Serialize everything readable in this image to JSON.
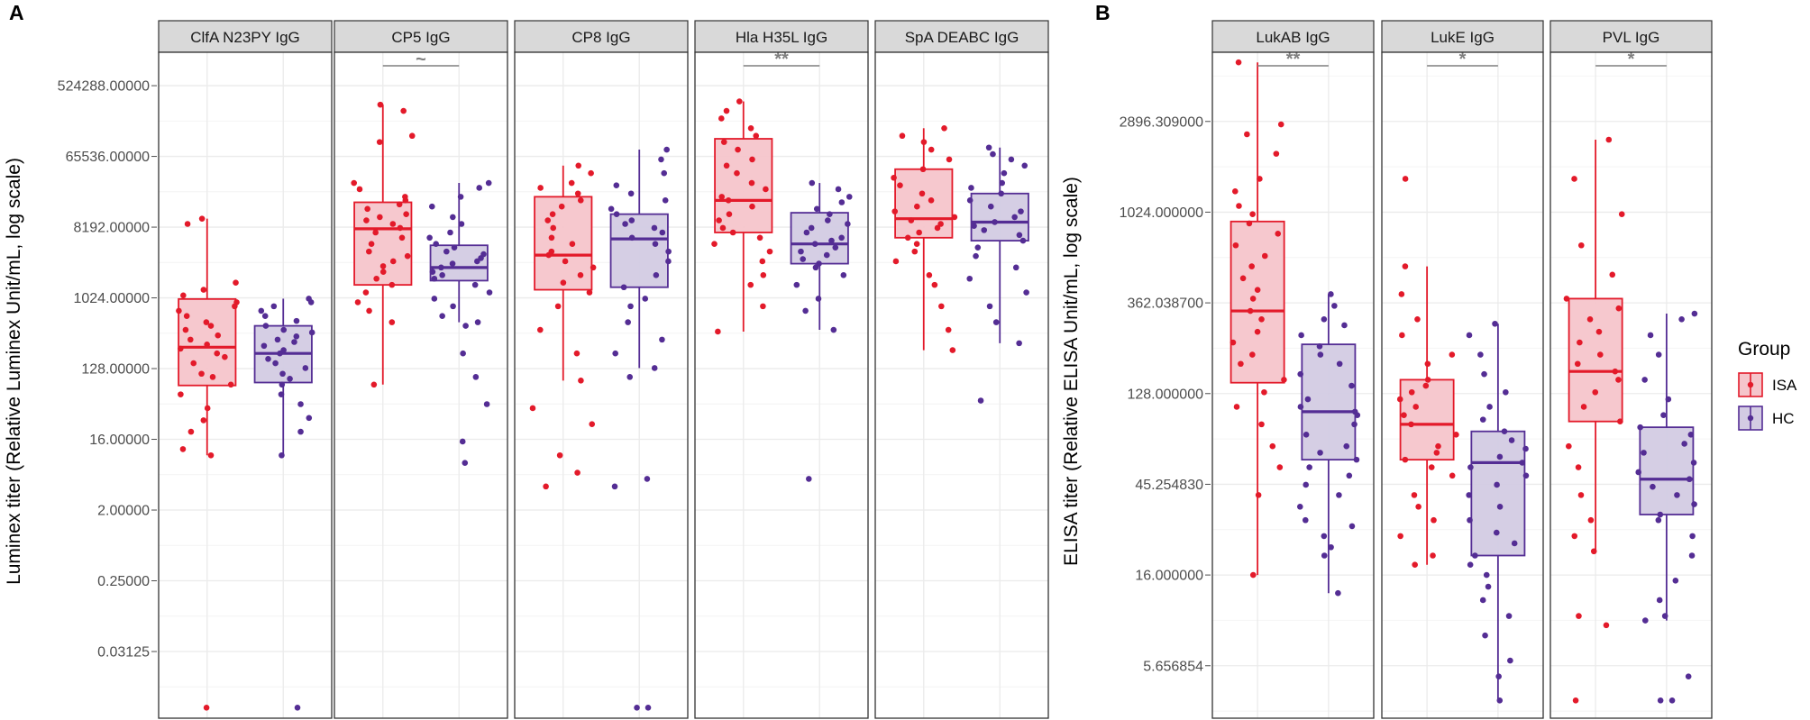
{
  "panel_labels": {
    "a": "A",
    "b": "B"
  },
  "groups": [
    {
      "key": "ISA",
      "label": "ISA",
      "color": "#e31a2a"
    },
    {
      "key": "HC",
      "label": "HC",
      "color": "#542d94"
    }
  ],
  "legend": {
    "title": "Group",
    "items": [
      "ISA",
      "HC"
    ]
  },
  "chart_data": [
    {
      "type": "box",
      "panel": "A",
      "ylabel": "Luminex titer (Relative Luminex Unit/mL, log scale)",
      "y_scale": "log2",
      "ylim": [
        0.0044,
        1400000
      ],
      "yticks": [
        524288,
        65536,
        8192,
        1024,
        128,
        16,
        2,
        0.25,
        0.03125
      ],
      "ytick_labels": [
        "524288.00000",
        "65536.00000",
        "8192.00000",
        "1024.00000",
        "128.00000",
        "16.00000",
        "2.00000",
        "0.25000",
        "0.03125"
      ],
      "facets": [
        {
          "label": "ClfA N23PY IgG",
          "sig": "",
          "groups": [
            {
              "group": "ISA",
              "min": 10,
              "q1": 78,
              "median": 240,
              "q3": 990,
              "max": 10500,
              "points": [
                0.006,
                10,
                12,
                20,
                28,
                40,
                60,
                80,
                100,
                110,
                150,
                180,
                200,
                230,
                260,
                300,
                340,
                400,
                450,
                500,
                600,
                700,
                800,
                900,
                1100,
                1300,
                1600,
                9000,
                10500
              ]
            },
            {
              "group": "HC",
              "min": 10,
              "q1": 85,
              "median": 200,
              "q3": 450,
              "max": 1000,
              "points": [
                0.006,
                10,
                20,
                30,
                45,
                60,
                80,
                95,
                110,
                130,
                150,
                170,
                200,
                220,
                250,
                280,
                300,
                330,
                370,
                400,
                450,
                520,
                600,
                700,
                800,
                900,
                1000
              ]
            }
          ]
        },
        {
          "label": "CP5 IgG",
          "sig": "~",
          "groups": [
            {
              "group": "ISA",
              "min": 80,
              "q1": 1500,
              "median": 7800,
              "q3": 17000,
              "max": 300000,
              "points": [
                80,
                500,
                700,
                900,
                1200,
                1500,
                1800,
                2200,
                2600,
                3000,
                3500,
                4000,
                5000,
                6000,
                7000,
                8000,
                9000,
                10000,
                11000,
                12000,
                14000,
                16000,
                18000,
                20000,
                25000,
                30000,
                100000,
                120000,
                250000,
                300000
              ]
            },
            {
              "group": "HC",
              "min": 500,
              "q1": 1700,
              "median": 2500,
              "q3": 4800,
              "max": 30000,
              "points": [
                8,
                15,
                45,
                100,
                200,
                450,
                500,
                600,
                800,
                1000,
                1200,
                1500,
                1800,
                2000,
                2200,
                2500,
                2800,
                3000,
                3300,
                3700,
                4000,
                4500,
                5000,
                6000,
                7000,
                9000,
                11000,
                15000,
                20000,
                26000,
                30000
              ]
            }
          ]
        },
        {
          "label": "CP8 IgG",
          "sig": "",
          "groups": [
            {
              "group": "ISA",
              "min": 90,
              "q1": 1300,
              "median": 3600,
              "q3": 20000,
              "max": 50000,
              "points": [
                4,
                6,
                10,
                25,
                40,
                90,
                200,
                400,
                800,
                1200,
                1600,
                2000,
                2500,
                3000,
                3600,
                4000,
                5000,
                6000,
                8000,
                10000,
                12000,
                15000,
                18000,
                22000,
                26000,
                30000,
                40000,
                50000
              ]
            },
            {
              "group": "HC",
              "min": 130,
              "q1": 1400,
              "median": 5800,
              "q3": 12000,
              "max": 80000,
              "points": [
                0.006,
                0.006,
                4,
                5,
                100,
                130,
                200,
                300,
                500,
                800,
                1000,
                1400,
                2000,
                3000,
                4000,
                5000,
                6000,
                7000,
                8000,
                9000,
                10000,
                12000,
                14000,
                18000,
                22000,
                28000,
                40000,
                60000,
                80000
              ]
            }
          ]
        },
        {
          "label": "Hla H35L IgG",
          "sig": "**",
          "groups": [
            {
              "group": "ISA",
              "min": 380,
              "q1": 7000,
              "median": 18000,
              "q3": 110000,
              "max": 330000,
              "points": [
                380,
                800,
                1500,
                2000,
                3000,
                4000,
                5000,
                6000,
                7000,
                8000,
                10000,
                12000,
                15000,
                18000,
                20000,
                25000,
                30000,
                40000,
                50000,
                60000,
                80000,
                100000,
                120000,
                150000,
                200000,
                250000,
                330000
              ]
            },
            {
              "group": "HC",
              "min": 400,
              "q1": 2800,
              "median": 5000,
              "q3": 12500,
              "max": 30000,
              "points": [
                5,
                400,
                700,
                1000,
                1500,
                2000,
                2500,
                2800,
                3200,
                3600,
                4000,
                4500,
                5000,
                5500,
                6000,
                7000,
                8000,
                9000,
                10000,
                12000,
                14000,
                17000,
                20000,
                25000,
                30000
              ]
            }
          ]
        },
        {
          "label": "SpA DEABC IgG",
          "sig": "",
          "groups": [
            {
              "group": "ISA",
              "min": 220,
              "q1": 6000,
              "median": 10500,
              "q3": 45000,
              "max": 150000,
              "points": [
                220,
                400,
                800,
                1500,
                2000,
                3000,
                4000,
                5000,
                6000,
                7000,
                8000,
                9000,
                10000,
                11000,
                13000,
                15000,
                18000,
                22000,
                28000,
                35000,
                45000,
                60000,
                80000,
                100000,
                120000,
                150000
              ]
            },
            {
              "group": "HC",
              "min": 270,
              "q1": 5500,
              "median": 9500,
              "q3": 22000,
              "max": 85000,
              "points": [
                50,
                270,
                500,
                800,
                1200,
                1800,
                2500,
                3500,
                4500,
                5500,
                6500,
                7500,
                8500,
                9500,
                11000,
                13000,
                15000,
                18000,
                22000,
                26000,
                30000,
                40000,
                50000,
                60000,
                70000,
                85000
              ]
            }
          ]
        }
      ]
    },
    {
      "type": "box",
      "panel": "B",
      "ylabel": "ELISA titer (Relative ELISA Unit/mL, log scale)",
      "y_scale": "log2",
      "ylim": [
        3.1,
        6400
      ],
      "yticks": [
        2896.309,
        1024,
        362.0387,
        128,
        45.25483,
        16,
        5.656854
      ],
      "ytick_labels": [
        "2896.309000",
        "1024.000000",
        "362.038700",
        "128.000000",
        "45.254830",
        "16.000000",
        "5.656854"
      ],
      "facets": [
        {
          "label": "LukAB IgG",
          "sig": "**",
          "groups": [
            {
              "group": "ISA",
              "min": 16,
              "q1": 145,
              "median": 330,
              "q3": 920,
              "max": 5700,
              "points": [
                16,
                40,
                55,
                70,
                90,
                110,
                130,
                150,
                180,
                200,
                230,
                260,
                300,
                330,
                380,
                420,
                480,
                550,
                620,
                700,
                800,
                900,
                1000,
                1100,
                1300,
                1500,
                2000,
                2500,
                2800,
                5700
              ]
            },
            {
              "group": "HC",
              "min": 13,
              "q1": 60,
              "median": 104,
              "q3": 225,
              "max": 400,
              "points": [
                13,
                20,
                22,
                25,
                28,
                30,
                35,
                40,
                45,
                50,
                55,
                60,
                65,
                70,
                80,
                90,
                100,
                104,
                110,
                120,
                140,
                160,
                180,
                200,
                220,
                250,
                280,
                300,
                350,
                400
              ]
            }
          ]
        },
        {
          "label": "LukE IgG",
          "sig": "*",
          "groups": [
            {
              "group": "ISA",
              "min": 18,
              "q1": 60,
              "median": 90,
              "q3": 150,
              "max": 550,
              "points": [
                18,
                20,
                25,
                30,
                35,
                40,
                50,
                55,
                60,
                65,
                70,
                80,
                90,
                100,
                110,
                120,
                130,
                140,
                150,
                180,
                200,
                250,
                300,
                400,
                550,
                1500
              ]
            },
            {
              "group": "HC",
              "min": 3.8,
              "q1": 20,
              "median": 58,
              "q3": 83,
              "max": 285,
              "points": [
                3.8,
                5,
                6,
                8,
                10,
                12,
                14,
                16,
                18,
                20,
                23,
                26,
                30,
                35,
                40,
                45,
                50,
                55,
                58,
                62,
                68,
                75,
                83,
                95,
                110,
                130,
                160,
                200,
                250,
                285
              ]
            }
          ]
        },
        {
          "label": "PVL IgG",
          "sig": "*",
          "groups": [
            {
              "group": "ISA",
              "min": 21,
              "q1": 93,
              "median": 165,
              "q3": 380,
              "max": 2350,
              "points": [
                3.8,
                9,
                10,
                21,
                25,
                30,
                40,
                55,
                70,
                93,
                110,
                130,
                150,
                165,
                180,
                200,
                230,
                260,
                300,
                340,
                380,
                500,
                700,
                1000,
                1500,
                2350
              ]
            },
            {
              "group": "HC",
              "min": 9.5,
              "q1": 32,
              "median": 48,
              "q3": 87,
              "max": 320,
              "points": [
                3.8,
                3.8,
                5,
                9.5,
                10,
                12,
                15,
                20,
                25,
                30,
                32,
                36,
                40,
                44,
                48,
                52,
                58,
                65,
                72,
                80,
                87,
                100,
                120,
                150,
                200,
                250,
                300,
                320
              ]
            }
          ]
        }
      ]
    }
  ]
}
